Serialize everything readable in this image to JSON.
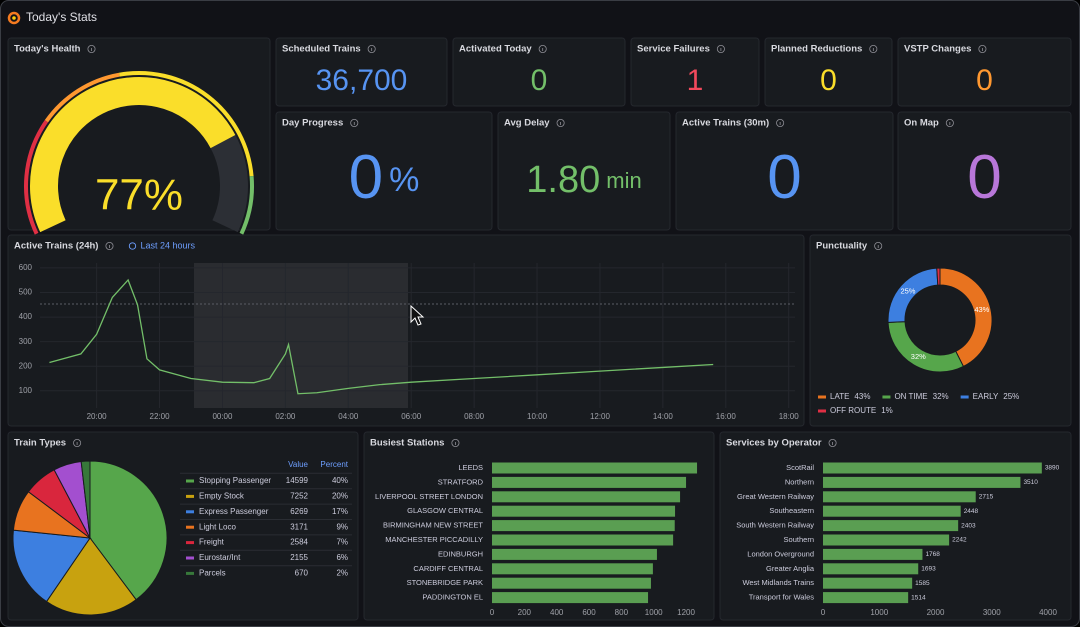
{
  "header": {
    "title": "Today's Stats"
  },
  "gauge": {
    "title": "Today's Health",
    "value": 77,
    "value_label": "77%",
    "range": [
      0,
      100
    ],
    "color": "#fade2a"
  },
  "stats": [
    {
      "title": "Scheduled Trains",
      "value": 36700,
      "value_label": "36,700",
      "color": "#5794f2"
    },
    {
      "title": "Activated Today",
      "value": 0,
      "color": "#73bf69"
    },
    {
      "title": "Service Failures",
      "value": 1,
      "color": "#f2495c"
    },
    {
      "title": "Planned Reductions",
      "value": 0,
      "color": "#fade2a"
    },
    {
      "title": "VSTP Changes",
      "value": 0,
      "color": "#ff9830"
    },
    {
      "title": "Day Progress",
      "value": 0,
      "unit": "%",
      "color": "#5794f2"
    },
    {
      "title": "Avg Delay",
      "value": 1.8,
      "value_label": "1.80",
      "unit": "min",
      "color": "#73bf69"
    },
    {
      "title": "Active Trains (30m)",
      "value": 0,
      "color": "#5794f2"
    },
    {
      "title": "On Map",
      "value": 0,
      "color": "#b877d9"
    }
  ],
  "chart_data": [
    {
      "type": "line",
      "title": "Active Trains (24h)",
      "time_range": "Last 24 hours",
      "x": [
        18.5,
        19.5,
        20.0,
        20.5,
        21.0,
        21.3,
        21.6,
        22,
        23,
        24,
        25,
        25.5,
        26,
        26.1,
        26.4,
        27,
        28,
        29,
        30,
        32,
        34,
        36,
        38,
        39.6
      ],
      "series": [
        {
          "values": [
            215,
            250,
            330,
            480,
            551,
            450,
            230,
            185,
            150,
            135,
            133,
            150,
            250,
            288,
            88,
            92,
            110,
            125,
            135,
            150,
            165,
            180,
            195,
            207
          ],
          "color": "#73bf69"
        }
      ],
      "xlim": [
        18.2,
        42.2
      ],
      "xticks": [
        {
          "value": 20,
          "label": "20:00"
        },
        {
          "value": 22,
          "label": "22:00"
        },
        {
          "value": 24,
          "label": "00:00"
        },
        {
          "value": 26,
          "label": "02:00"
        },
        {
          "value": 28,
          "label": "04:00"
        },
        {
          "value": 30,
          "label": "06:00"
        },
        {
          "value": 32,
          "label": "08:00"
        },
        {
          "value": 34,
          "label": "10:00"
        },
        {
          "value": 36,
          "label": "12:00"
        },
        {
          "value": 38,
          "label": "14:00"
        },
        {
          "value": 40,
          "label": "16:00"
        },
        {
          "value": 42,
          "label": "18:00"
        }
      ],
      "ylim": [
        30,
        620
      ],
      "yticks": [
        100,
        200,
        300,
        400,
        500,
        600
      ],
      "grid": true
    },
    {
      "type": "donut",
      "title": "Punctuality",
      "categories": [
        "LATE",
        "ON TIME",
        "EARLY",
        "OFF ROUTE"
      ],
      "values": [
        43,
        32,
        25,
        1
      ],
      "value_labels": [
        "43%",
        "32%",
        "25%",
        "1%"
      ],
      "colors": [
        "#e8731f",
        "#56a64b",
        "#3d7fe0",
        "#e02f44"
      ],
      "legend": "bottom"
    },
    {
      "type": "pie",
      "title": "Train Types",
      "columns": [
        "Value",
        "Percent"
      ],
      "categories": [
        "Stopping Passenger",
        "Empty Stock",
        "Express Passenger",
        "Light Loco",
        "Freight",
        "Eurostar/Int",
        "Parcels"
      ],
      "values": [
        14599,
        7252,
        6269,
        3171,
        2584,
        2155,
        670
      ],
      "percent_labels": [
        "40%",
        "20%",
        "17%",
        "9%",
        "7%",
        "6%",
        "2%"
      ],
      "colors": [
        "#56a64b",
        "#c8a20f",
        "#3d7fe0",
        "#e8731f",
        "#d9263d",
        "#a34fcf",
        "#37783a"
      ]
    },
    {
      "type": "bar",
      "orientation": "horizontal",
      "title": "Busiest Stations",
      "categories": [
        "LEEDS",
        "STRATFORD",
        "LIVERPOOL STREET LONDON",
        "GLASGOW CENTRAL",
        "BIRMINGHAM NEW STREET",
        "MANCHESTER PICCADILLY",
        "EDINBURGH",
        "CARDIFF CENTRAL",
        "STONEBRIDGE PARK",
        "PADDINGTON EL"
      ],
      "values": [
        1268,
        1200,
        1163,
        1132,
        1130,
        1120,
        1020,
        995,
        983,
        965
      ],
      "color": "#5a9e52",
      "xlim": [
        0,
        1290
      ],
      "xticks": [
        0,
        200,
        400,
        600,
        800,
        1000,
        1200
      ]
    },
    {
      "type": "bar",
      "orientation": "horizontal",
      "title": "Services by Operator",
      "show_values": true,
      "categories": [
        "ScotRail",
        "Northern",
        "Great Western Railway",
        "Southeastern",
        "South Western Railway",
        "Southern",
        "London Overground",
        "Greater Anglia",
        "West Midlands Trains",
        "Transport for Wales"
      ],
      "values": [
        3890,
        3510,
        2715,
        2448,
        2403,
        2242,
        1768,
        1693,
        1585,
        1514
      ],
      "color": "#5a9e52",
      "xlim": [
        0,
        4000
      ],
      "xticks": [
        0,
        1000,
        2000,
        3000,
        4000
      ]
    }
  ]
}
